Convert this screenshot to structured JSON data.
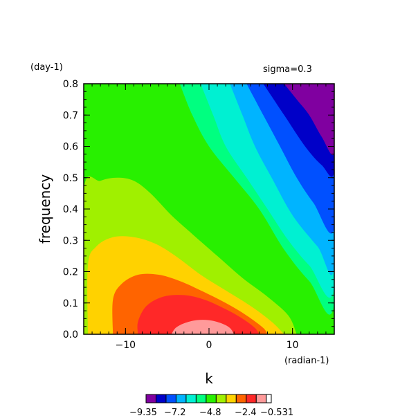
{
  "chart_data": {
    "type": "heatmap",
    "plot_kind": "filled-contour",
    "annotation_top_right": "sigma=0.3",
    "y_unit": "(day-1)",
    "x_unit": "(radian-1)",
    "xlabel": "k",
    "ylabel": "frequency",
    "xlim": [
      -15,
      15
    ],
    "ylim": [
      0,
      0.8
    ],
    "x_ticks": [
      -10,
      0,
      10
    ],
    "x_tick_labels": [
      "−10",
      "0",
      "10"
    ],
    "x_minor_step": 1,
    "y_ticks": [
      0.0,
      0.1,
      0.2,
      0.3,
      0.4,
      0.5,
      0.6,
      0.7,
      0.8
    ],
    "y_tick_labels": [
      "0.0",
      "0.1",
      "0.2",
      "0.3",
      "0.4",
      "0.5",
      "0.6",
      "0.7",
      "0.8"
    ],
    "y_minor_step": 0.025,
    "grid": false,
    "colorbar": {
      "placement": "bottom",
      "min_label": "−9.35",
      "tick_labels": [
        "−9.35",
        "−7.2",
        "−4.8",
        "−2.4",
        "−0.531"
      ],
      "colors": [
        "#8000a0",
        "#0000c8",
        "#0050ff",
        "#00b4ff",
        "#00f0d2",
        "#00ff80",
        "#28f000",
        "#a0f000",
        "#ffd200",
        "#ff6400",
        "#ff2828",
        "#ff9a9a"
      ]
    },
    "contour_colors": {
      "purple": "#8000a0",
      "dark_blue": "#0000c8",
      "blue": "#0050ff",
      "light_blue": "#00b4ff",
      "aqua": "#00f0d2",
      "sea_green": "#00ff80",
      "green": "#28f000",
      "yellow_green": "#a0f000",
      "yellow": "#ffd200",
      "orange": "#ff6400",
      "red": "#ff2828",
      "pink": "#ff9a9a"
    },
    "regions": [
      {
        "name": "green-background",
        "color": "green",
        "points": [
          [
            -15,
            0
          ],
          [
            -15,
            0.8
          ],
          [
            15,
            0.8
          ],
          [
            15,
            0
          ]
        ]
      },
      {
        "name": "sea-green-band",
        "color": "sea_green",
        "points": [
          [
            -3.5,
            0.8
          ],
          [
            -2,
            0.7
          ],
          [
            0,
            0.6
          ],
          [
            3,
            0.5
          ],
          [
            6,
            0.4
          ],
          [
            9,
            0.27
          ],
          [
            12,
            0.17
          ],
          [
            15,
            0.1
          ],
          [
            15,
            0.8
          ]
        ]
      },
      {
        "name": "aqua-band",
        "color": "aqua",
        "points": [
          [
            -1,
            0.8
          ],
          [
            0.5,
            0.7
          ],
          [
            2,
            0.6
          ],
          [
            4.5,
            0.5
          ],
          [
            7,
            0.4
          ],
          [
            9.5,
            0.3
          ],
          [
            12,
            0.22
          ],
          [
            15,
            0.15
          ],
          [
            15,
            0.8
          ]
        ]
      },
      {
        "name": "light-blue-band",
        "color": "light_blue",
        "points": [
          [
            2.5,
            0.8
          ],
          [
            4,
            0.7
          ],
          [
            5.5,
            0.6
          ],
          [
            7.5,
            0.5
          ],
          [
            10,
            0.38
          ],
          [
            13,
            0.28
          ],
          [
            15,
            0.22
          ],
          [
            15,
            0.8
          ]
        ]
      },
      {
        "name": "blue-band",
        "color": "blue",
        "points": [
          [
            4.5,
            0.8
          ],
          [
            6.5,
            0.7
          ],
          [
            8.5,
            0.6
          ],
          [
            10.5,
            0.5
          ],
          [
            12.5,
            0.42
          ],
          [
            15,
            0.34
          ],
          [
            15,
            0.8
          ]
        ]
      },
      {
        "name": "dark-blue-band",
        "color": "dark_blue",
        "points": [
          [
            6.5,
            0.8
          ],
          [
            9,
            0.7
          ],
          [
            11.5,
            0.6
          ],
          [
            13.5,
            0.54
          ],
          [
            15,
            0.52
          ],
          [
            15,
            0.8
          ]
        ]
      },
      {
        "name": "purple-corner",
        "color": "purple",
        "points": [
          [
            9,
            0.8
          ],
          [
            10.5,
            0.75
          ],
          [
            12,
            0.7
          ],
          [
            13.5,
            0.63
          ],
          [
            15,
            0.58
          ],
          [
            15,
            0.8
          ]
        ]
      },
      {
        "name": "yellow-green-lobe",
        "color": "yellow_green",
        "points": [
          [
            -15,
            0
          ],
          [
            -15,
            0.46
          ],
          [
            -13,
            0.49
          ],
          [
            -11,
            0.5
          ],
          [
            -9,
            0.49
          ],
          [
            -7,
            0.45
          ],
          [
            -4.5,
            0.38
          ],
          [
            -2,
            0.32
          ],
          [
            1,
            0.25
          ],
          [
            4,
            0.18
          ],
          [
            7,
            0.12
          ],
          [
            9.5,
            0.06
          ],
          [
            10.5,
            0
          ]
        ]
      },
      {
        "name": "yellow-lobe",
        "color": "yellow",
        "points": [
          [
            -14.5,
            0
          ],
          [
            -14.5,
            0.22
          ],
          [
            -13.5,
            0.28
          ],
          [
            -11.5,
            0.31
          ],
          [
            -9,
            0.31
          ],
          [
            -6.5,
            0.29
          ],
          [
            -4,
            0.25
          ],
          [
            -1,
            0.19
          ],
          [
            2,
            0.14
          ],
          [
            5,
            0.09
          ],
          [
            7.5,
            0.04
          ],
          [
            9,
            0
          ]
        ]
      },
      {
        "name": "orange-lobe",
        "color": "orange",
        "points": [
          [
            -11.5,
            0
          ],
          [
            -11.5,
            0.11
          ],
          [
            -10.5,
            0.16
          ],
          [
            -8.5,
            0.19
          ],
          [
            -6,
            0.19
          ],
          [
            -3.5,
            0.17
          ],
          [
            -1,
            0.14
          ],
          [
            2,
            0.1
          ],
          [
            4.5,
            0.06
          ],
          [
            6.5,
            0.02
          ],
          [
            7,
            0
          ]
        ]
      },
      {
        "name": "red-lobe",
        "color": "red",
        "points": [
          [
            -8.5,
            0
          ],
          [
            -8.5,
            0.04
          ],
          [
            -7.5,
            0.09
          ],
          [
            -5.5,
            0.12
          ],
          [
            -3,
            0.125
          ],
          [
            -0.5,
            0.11
          ],
          [
            2,
            0.08
          ],
          [
            4,
            0.05
          ],
          [
            5.5,
            0.02
          ],
          [
            6,
            0
          ]
        ]
      },
      {
        "name": "pink-center",
        "color": "pink",
        "points": [
          [
            -4.5,
            0
          ],
          [
            -4,
            0.02
          ],
          [
            -3,
            0.035
          ],
          [
            -1.5,
            0.045
          ],
          [
            0,
            0.045
          ],
          [
            1.5,
            0.035
          ],
          [
            2.5,
            0.02
          ],
          [
            3,
            0
          ]
        ]
      }
    ]
  }
}
